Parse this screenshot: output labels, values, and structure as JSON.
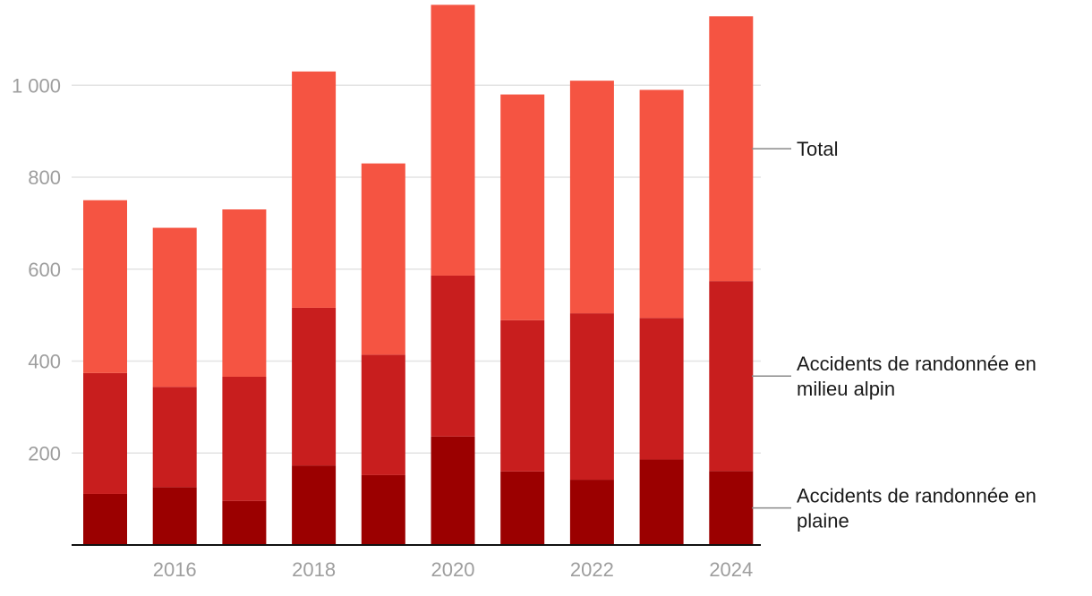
{
  "chart_data": {
    "type": "bar",
    "stacked": true,
    "title": "",
    "xlabel": "",
    "ylabel": "",
    "x": [
      2015,
      2016,
      2017,
      2018,
      2019,
      2020,
      2021,
      2022,
      2023,
      2024
    ],
    "x_tick_labels": [
      "2016",
      "2018",
      "2020",
      "2022",
      "2024"
    ],
    "y_ticks": [
      200,
      400,
      600,
      800,
      1000
    ],
    "y_tick_labels": [
      "200",
      "400",
      "600",
      "800",
      "1 000"
    ],
    "ylim": [
      0,
      1175
    ],
    "grid": true,
    "legend_placement": "right, inline labels",
    "series": [
      {
        "name": "Accidents de randonnée en plaine",
        "color": "#9b0000",
        "values": [
          111,
          126,
          96,
          173,
          152,
          236,
          160,
          142,
          186,
          161
        ]
      },
      {
        "name": "Accidents de randonnée en milieu alpin",
        "color": "#c81e1e",
        "values": [
          263,
          218,
          270,
          343,
          262,
          350,
          329,
          362,
          308,
          413
        ]
      },
      {
        "name": "Total",
        "color": "#f55442",
        "values": [
          750,
          690,
          730,
          1030,
          830,
          1175,
          980,
          1010,
          990,
          1150
        ]
      }
    ],
    "legend": {
      "total": "Total",
      "alpin": "Accidents de randonnée en\nmilieu alpin",
      "plaine": "Accidents de randonnée en\nplaine"
    }
  }
}
